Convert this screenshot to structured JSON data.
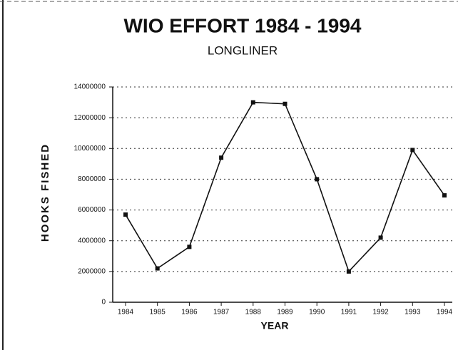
{
  "chart_data": {
    "type": "line",
    "title": "WIO EFFORT 1984 - 1994",
    "subtitle": "LONGLINER",
    "x_label": "YEAR",
    "y_label": "HOOKS FISHED",
    "categories": [
      "1984",
      "1985",
      "1986",
      "1987",
      "1988",
      "1989",
      "1990",
      "1991",
      "1992",
      "1993",
      "1994"
    ],
    "series": [
      {
        "name": "LONGLINER",
        "color": "#111111",
        "values": [
          5700000,
          2200000,
          3600000,
          9400000,
          13000000,
          12900000,
          8000000,
          2000000,
          4200000,
          9900000,
          6950000
        ]
      }
    ],
    "ylim": [
      0,
      14000000
    ],
    "yticks": [
      0,
      2000000,
      4000000,
      6000000,
      8000000,
      10000000,
      12000000,
      14000000
    ],
    "grid": true
  }
}
